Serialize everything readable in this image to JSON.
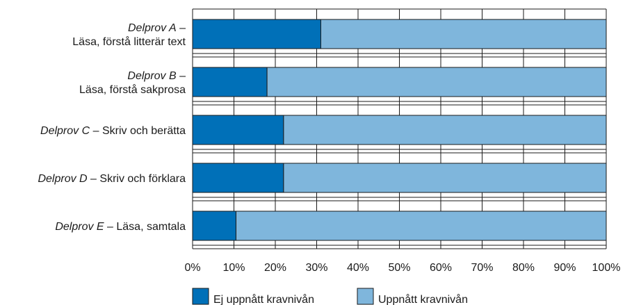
{
  "chart_data": {
    "type": "bar",
    "orientation": "horizontal",
    "stacked": true,
    "categories": [
      {
        "italic": "Delprov A",
        "rest": " –",
        "line2": "Läsa, förstå litterär text"
      },
      {
        "italic": "Delprov B",
        "rest": " –",
        "line2": "Läsa, förstå sakprosa"
      },
      {
        "italic": "Delprov C",
        "rest": " – Skriv och berätta",
        "line2": ""
      },
      {
        "italic": "Delprov D",
        "rest": " – Skriv och förklara",
        "line2": ""
      },
      {
        "italic": "Delprov E",
        "rest": " – Läsa, samtala",
        "line2": ""
      }
    ],
    "series": [
      {
        "name": "Ej uppnått kravnivån",
        "color": "#0070b8",
        "values": [
          31,
          18,
          22,
          22,
          10.5
        ]
      },
      {
        "name": "Uppnått kravnivån",
        "color": "#7fb6dc",
        "values": [
          69,
          82,
          78,
          78,
          89.5
        ]
      }
    ],
    "xlim": [
      0,
      100
    ],
    "xticks": [
      "0%",
      "10%",
      "20%",
      "30%",
      "40%",
      "50%",
      "60%",
      "70%",
      "80%",
      "90%",
      "100%"
    ],
    "grid": true,
    "legend_position": "bottom"
  }
}
